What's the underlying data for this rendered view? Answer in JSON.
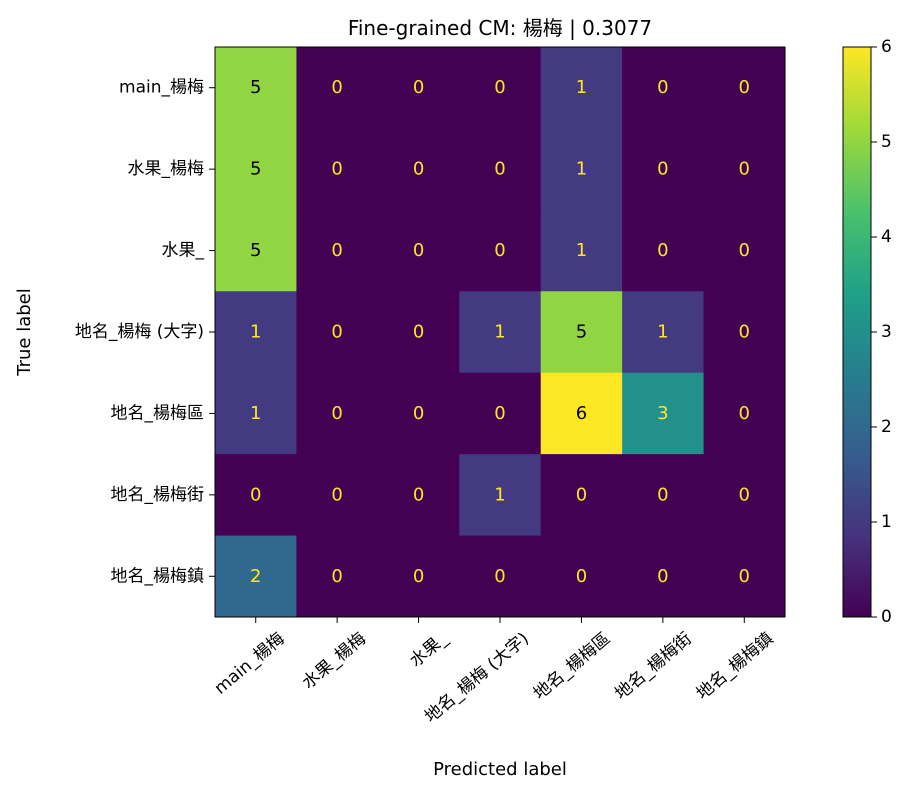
{
  "chart_data": {
    "type": "heatmap",
    "title": "Fine-grained CM: 楊梅 | 0.3077",
    "xlabel": "Predicted label",
    "ylabel": "True label",
    "x_categories": [
      "main_楊梅",
      "水果_楊梅",
      "水果_",
      "地名_楊梅 (大字)",
      "地名_楊梅區",
      "地名_楊梅街",
      "地名_楊梅鎮"
    ],
    "y_categories": [
      "main_楊梅",
      "水果_楊梅",
      "水果_",
      "地名_楊梅 (大字)",
      "地名_楊梅區",
      "地名_楊梅街",
      "地名_楊梅鎮"
    ],
    "matrix": [
      [
        5,
        0,
        0,
        0,
        1,
        0,
        0
      ],
      [
        5,
        0,
        0,
        0,
        1,
        0,
        0
      ],
      [
        5,
        0,
        0,
        0,
        1,
        0,
        0
      ],
      [
        1,
        0,
        0,
        1,
        5,
        1,
        0
      ],
      [
        1,
        0,
        0,
        0,
        6,
        3,
        0
      ],
      [
        0,
        0,
        0,
        1,
        0,
        0,
        0
      ],
      [
        2,
        0,
        0,
        0,
        0,
        0,
        0
      ]
    ],
    "colormap": "viridis",
    "colorbar": {
      "min": 0,
      "max": 6,
      "ticks": [
        0,
        1,
        2,
        3,
        4,
        5,
        6
      ]
    },
    "x_tick_rotation_deg": 40,
    "grid": false,
    "legend": "colorbar-right"
  },
  "colors": {
    "dark_text": "#000000",
    "light_text": "#fde725"
  }
}
